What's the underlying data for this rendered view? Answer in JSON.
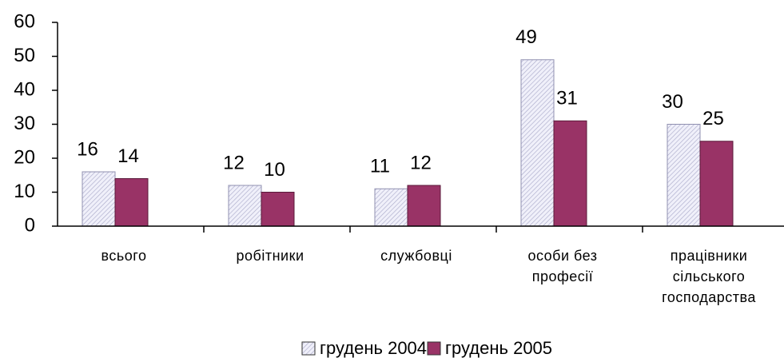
{
  "chart_data": {
    "type": "bar",
    "categories": [
      "всього",
      "робітники",
      "службовці",
      "особи без\nпрофесії",
      "працівники\nсільського\nгосподарства"
    ],
    "series": [
      {
        "name": "грудень 2004",
        "color": "#dcdcf0",
        "values": [
          16,
          12,
          11,
          49,
          30
        ]
      },
      {
        "name": "грудень 2005",
        "color": "#993366",
        "values": [
          14,
          10,
          12,
          31,
          25
        ]
      }
    ],
    "ylim": [
      0,
      60
    ],
    "yticks": [
      0,
      10,
      20,
      30,
      40,
      50,
      60
    ],
    "legend": "bottom"
  }
}
